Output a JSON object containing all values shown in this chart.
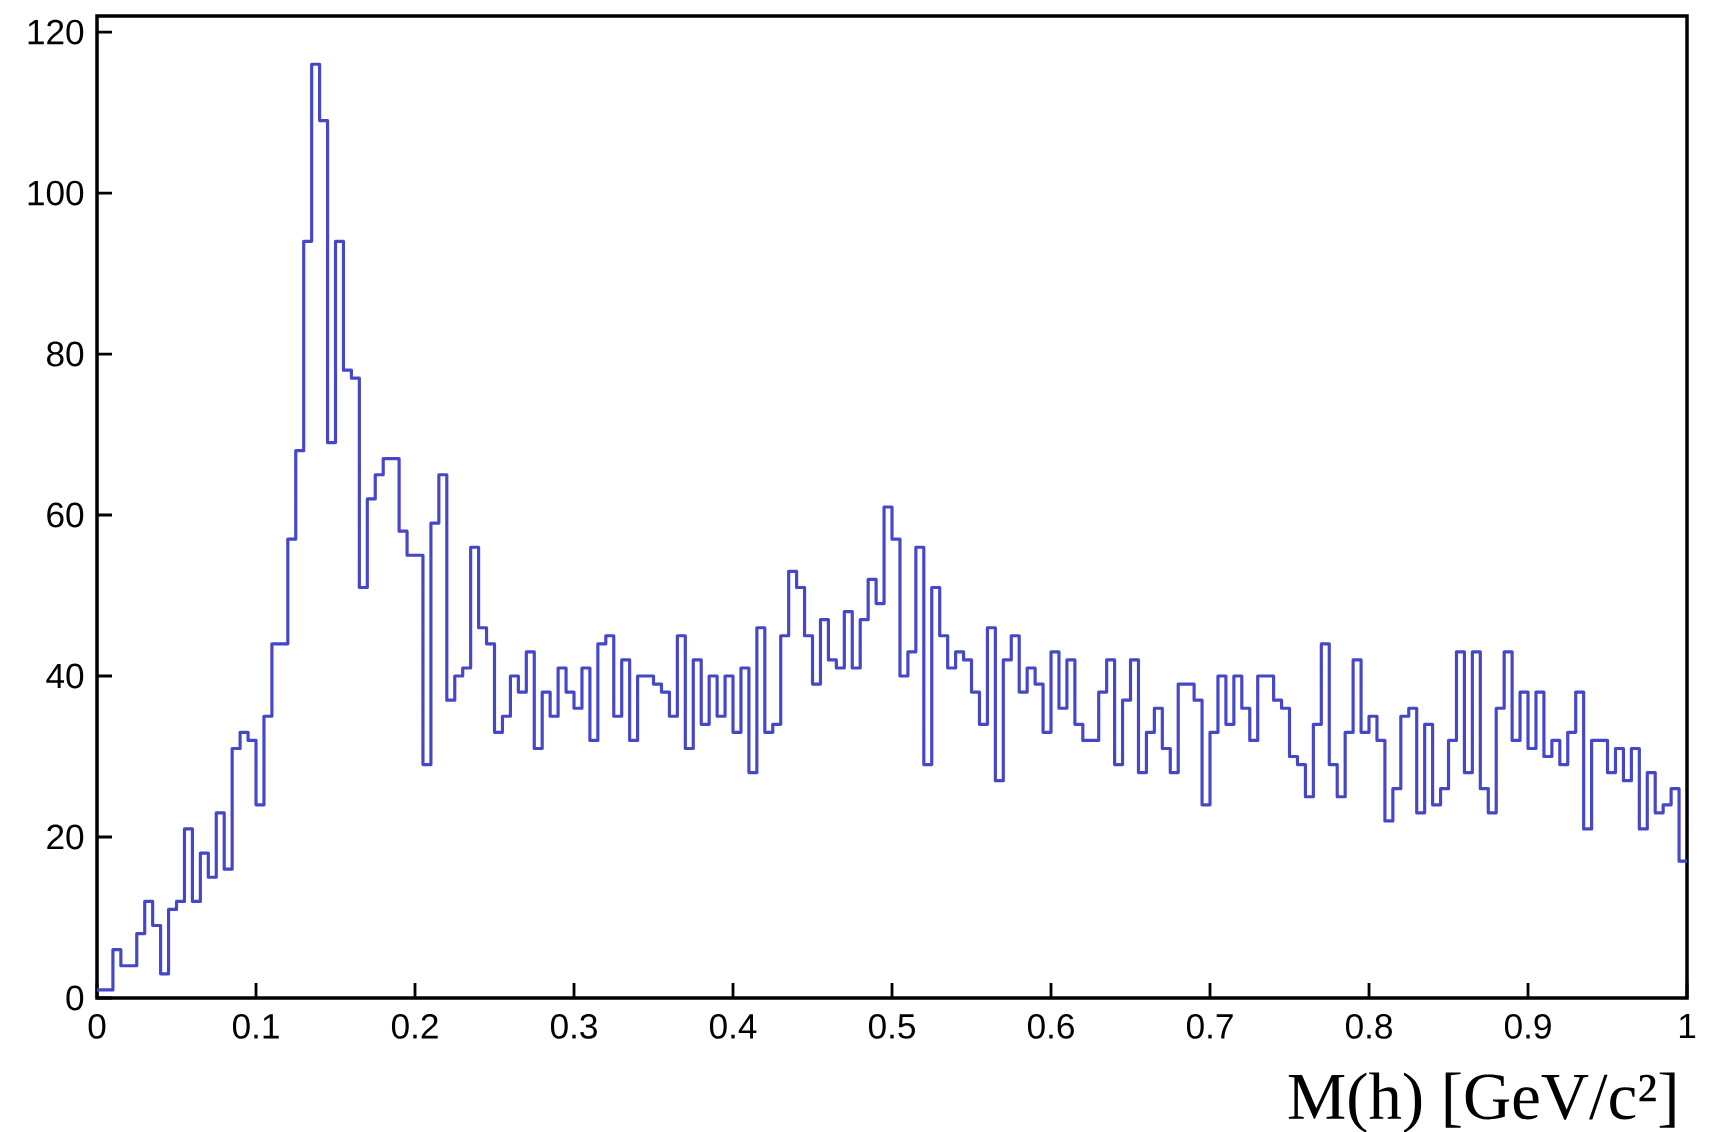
{
  "chart_data": {
    "type": "histogram",
    "xlabel": "M(h) [GeV/c²]",
    "color": "#4646c8",
    "bins": [
      0,
      0.005,
      0.01,
      0.015,
      0.02,
      0.025,
      0.03,
      0.035,
      0.04,
      0.045,
      0.05,
      0.055,
      0.06,
      0.065,
      0.07,
      0.075,
      0.08,
      0.085,
      0.09,
      0.095,
      0.1,
      0.105,
      0.11,
      0.115,
      0.12,
      0.125,
      0.13,
      0.135,
      0.14,
      0.145,
      0.15,
      0.155,
      0.16,
      0.165,
      0.17,
      0.175,
      0.18,
      0.185,
      0.19,
      0.195,
      0.2,
      0.205,
      0.21,
      0.215,
      0.22,
      0.225,
      0.23,
      0.235,
      0.24,
      0.245,
      0.25,
      0.255,
      0.26,
      0.265,
      0.27,
      0.275,
      0.28,
      0.285,
      0.29,
      0.295,
      0.3,
      0.305,
      0.31,
      0.315,
      0.32,
      0.325,
      0.33,
      0.335,
      0.34,
      0.345,
      0.35,
      0.355,
      0.36,
      0.365,
      0.37,
      0.375,
      0.38,
      0.385,
      0.39,
      0.395,
      0.4,
      0.405,
      0.41,
      0.415,
      0.42,
      0.425,
      0.43,
      0.435,
      0.44,
      0.445,
      0.45,
      0.455,
      0.46,
      0.465,
      0.47,
      0.475,
      0.48,
      0.485,
      0.49,
      0.495,
      0.5,
      0.505,
      0.51,
      0.515,
      0.52,
      0.525,
      0.53,
      0.535,
      0.54,
      0.545,
      0.55,
      0.555,
      0.56,
      0.565,
      0.57,
      0.575,
      0.58,
      0.585,
      0.59,
      0.595,
      0.6,
      0.605,
      0.61,
      0.615,
      0.62,
      0.625,
      0.63,
      0.635,
      0.64,
      0.645,
      0.65,
      0.655,
      0.66,
      0.665,
      0.67,
      0.675,
      0.68,
      0.685,
      0.69,
      0.695,
      0.7,
      0.705,
      0.71,
      0.715,
      0.72,
      0.725,
      0.73,
      0.735,
      0.74,
      0.745,
      0.75,
      0.755,
      0.76,
      0.765,
      0.77,
      0.775,
      0.78,
      0.785,
      0.79,
      0.795,
      0.8,
      0.805,
      0.81,
      0.815,
      0.82,
      0.825,
      0.83,
      0.835,
      0.84,
      0.845,
      0.85,
      0.855,
      0.86,
      0.865,
      0.87,
      0.875,
      0.88,
      0.885,
      0.89,
      0.895,
      0.9,
      0.905,
      0.91,
      0.915,
      0.92,
      0.925,
      0.93,
      0.935,
      0.94,
      0.945,
      0.95,
      0.955,
      0.96,
      0.965,
      0.97,
      0.975,
      0.98,
      0.985,
      0.99,
      0.995,
      1
    ],
    "values": [
      1,
      1,
      6,
      4,
      4,
      8,
      12,
      9,
      3,
      11,
      12,
      21,
      12,
      18,
      15,
      23,
      16,
      31,
      33,
      32,
      24,
      35,
      44,
      44,
      57,
      68,
      94,
      116,
      109,
      69,
      94,
      78,
      77,
      51,
      62,
      65,
      67,
      67,
      58,
      55,
      55,
      29,
      59,
      65,
      37,
      40,
      41,
      56,
      46,
      44,
      33,
      35,
      40,
      38,
      43,
      31,
      38,
      35,
      41,
      38,
      36,
      41,
      32,
      44,
      45,
      35,
      42,
      32,
      40,
      40,
      39,
      38,
      35,
      45,
      31,
      42,
      34,
      40,
      35,
      40,
      33,
      41,
      28,
      46,
      33,
      34,
      45,
      53,
      51,
      45,
      39,
      47,
      42,
      41,
      48,
      41,
      47,
      52,
      49,
      61,
      57,
      40,
      43,
      56,
      29,
      51,
      45,
      41,
      43,
      42,
      38,
      34,
      46,
      27,
      42,
      45,
      38,
      41,
      39,
      33,
      43,
      36,
      42,
      34,
      32,
      32,
      38,
      42,
      29,
      37,
      42,
      28,
      33,
      36,
      31,
      28,
      39,
      39,
      37,
      24,
      33,
      40,
      34,
      40,
      36,
      32,
      40,
      40,
      37,
      36,
      30,
      29,
      25,
      34,
      44,
      29,
      25,
      33,
      42,
      33,
      35,
      32,
      22,
      26,
      35,
      36,
      23,
      34,
      24,
      26,
      32,
      43,
      28,
      43,
      26,
      23,
      36,
      43,
      32,
      38,
      31,
      38,
      30,
      32,
      29,
      33,
      38,
      21,
      32,
      32,
      28,
      31,
      27,
      31,
      21,
      28,
      23,
      24,
      26,
      17
    ],
    "xlim": [
      0,
      1
    ],
    "ylim": [
      0,
      122
    ],
    "xticks": [
      0,
      0.1,
      0.2,
      0.3,
      0.4,
      0.5,
      0.6,
      0.7,
      0.8,
      0.9,
      1
    ],
    "yticks": [
      0,
      20,
      40,
      60,
      80,
      100,
      120
    ]
  }
}
